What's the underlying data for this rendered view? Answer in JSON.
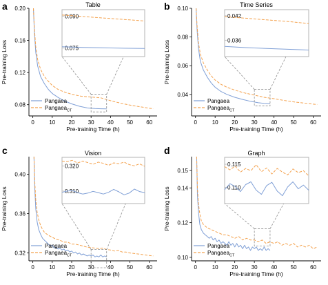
{
  "figure": {
    "panels": [
      "a",
      "b",
      "c",
      "d"
    ]
  },
  "colors": {
    "pangaea": "#7f9fd6",
    "pangaea_ct": "#f4a24e",
    "axis": "#000000",
    "guide": "#8c8c8c",
    "inset_frame": "#b3b3b3"
  },
  "chart_data": [
    {
      "panel": "a",
      "type": "line",
      "title": "Table",
      "xlabel": "Pre-training Time (h)",
      "ylabel": "Pre-training Loss",
      "xlim": [
        -2,
        64
      ],
      "ylim": [
        0.066,
        0.2
      ],
      "xticks": [
        0,
        10,
        20,
        30,
        40,
        50,
        60
      ],
      "yticks": [
        0.08,
        0.12,
        0.16,
        0.2
      ],
      "ytick_labels": [
        "0.08",
        "0.12",
        "0.16",
        "0.20"
      ],
      "legend": {
        "position": "bottom-left",
        "entries": [
          "Pangaea",
          "Pangaea",
          "CT"
        ]
      },
      "series": [
        {
          "name": "Pangaea",
          "style": "solid",
          "x": [
            0.3,
            0.8,
            1.5,
            2.5,
            4,
            6,
            8,
            10,
            13,
            16,
            20,
            24,
            28,
            32,
            35,
            38
          ],
          "y": [
            0.2,
            0.17,
            0.145,
            0.128,
            0.115,
            0.106,
            0.099,
            0.094,
            0.089,
            0.085,
            0.081,
            0.078,
            0.076,
            0.0752,
            0.0749,
            0.0748
          ]
        },
        {
          "name": "Pangaea CT",
          "style": "dashed",
          "x": [
            0.3,
            0.8,
            1.5,
            2.5,
            4,
            6,
            8,
            10,
            13,
            16,
            20,
            25,
            30,
            35,
            40,
            45,
            50,
            55,
            60,
            62
          ],
          "y": [
            0.2,
            0.175,
            0.152,
            0.136,
            0.124,
            0.115,
            0.109,
            0.104,
            0.099,
            0.096,
            0.093,
            0.0905,
            0.0895,
            0.0885,
            0.085,
            0.082,
            0.0795,
            0.0775,
            0.0755,
            0.075
          ]
        }
      ],
      "zoom": {
        "xlim": [
          30,
          38
        ],
        "ylim": [
          0.071,
          0.093
        ],
        "yticks": [
          0.075,
          0.09
        ],
        "ytick_labels": [
          "0.075",
          "0.090"
        ],
        "series": [
          {
            "name": "Pangaea",
            "x": [
              30,
              32,
              34,
              36,
              38
            ],
            "y": [
              0.0756,
              0.0753,
              0.0751,
              0.0749,
              0.0748
            ]
          },
          {
            "name": "Pangaea CT",
            "x": [
              30,
              32,
              34,
              36,
              38
            ],
            "y": [
              0.0905,
              0.0898,
              0.0891,
              0.0884,
              0.0877
            ]
          }
        ]
      }
    },
    {
      "panel": "b",
      "type": "line",
      "title": "Time Series",
      "xlabel": "Pre-training Time (h)",
      "ylabel": "Pre-training Loss",
      "xlim": [
        -2,
        64
      ],
      "ylim": [
        0.025,
        0.1
      ],
      "xticks": [
        0,
        10,
        20,
        30,
        40,
        50,
        60
      ],
      "yticks": [
        0.04,
        0.06,
        0.08,
        0.1
      ],
      "ytick_labels": [
        "0.04",
        "0.06",
        "0.08",
        "0.10"
      ],
      "legend": {
        "position": "bottom-left",
        "entries": [
          "Pangaea",
          "Pangaea",
          "CT"
        ]
      },
      "series": [
        {
          "name": "Pangaea",
          "style": "solid",
          "x": [
            0.3,
            0.8,
            1.5,
            2.5,
            4,
            6,
            8,
            10,
            13,
            16,
            20,
            24,
            28,
            32,
            35,
            38
          ],
          "y": [
            0.1,
            0.085,
            0.072,
            0.063,
            0.057,
            0.052,
            0.048,
            0.045,
            0.042,
            0.04,
            0.038,
            0.0365,
            0.0352,
            0.0342,
            0.0338,
            0.0335
          ]
        },
        {
          "name": "Pangaea CT",
          "style": "dashed",
          "x": [
            0.3,
            0.8,
            1.5,
            2.5,
            4,
            6,
            8,
            10,
            13,
            16,
            20,
            25,
            30,
            35,
            40,
            45,
            50,
            55,
            60,
            62
          ],
          "y": [
            0.1,
            0.088,
            0.076,
            0.068,
            0.062,
            0.057,
            0.053,
            0.05,
            0.047,
            0.045,
            0.043,
            0.041,
            0.0395,
            0.038,
            0.037,
            0.0358,
            0.0348,
            0.034,
            0.0332,
            0.033
          ]
        }
      ],
      "zoom": {
        "xlim": [
          30,
          38
        ],
        "ylim": [
          0.032,
          0.0435
        ],
        "yticks": [
          0.036,
          0.042
        ],
        "ytick_labels": [
          "0.036",
          "0.042"
        ],
        "series": [
          {
            "name": "Pangaea",
            "x": [
              30,
              32,
              34,
              36,
              38
            ],
            "y": [
              0.0345,
              0.0342,
              0.034,
              0.0338,
              0.0336
            ]
          },
          {
            "name": "Pangaea CT",
            "x": [
              30,
              32,
              34,
              36,
              38
            ],
            "y": [
              0.0418,
              0.0414,
              0.041,
              0.0406,
              0.0401
            ]
          }
        ]
      }
    },
    {
      "panel": "c",
      "type": "line",
      "title": "Vision",
      "xlabel": "Pre-training Time (h)",
      "ylabel": "Pre-training Loss",
      "xlim": [
        -2,
        64
      ],
      "ylim": [
        0.312,
        0.418
      ],
      "xticks": [
        0,
        10,
        20,
        30,
        40,
        50,
        60
      ],
      "yticks": [
        0.32,
        0.36,
        0.4
      ],
      "ytick_labels": [
        "0.32",
        "0.36",
        "0.40"
      ],
      "legend": {
        "position": "bottom-left",
        "entries": [
          "Pangaea",
          "Pangaea",
          "CT"
        ]
      },
      "series": [
        {
          "name": "Pangaea",
          "style": "solid",
          "x": [
            0.6,
            1,
            1.5,
            2.2,
            3,
            4,
            5,
            6,
            7,
            8,
            9,
            10,
            11,
            12,
            13,
            14,
            15,
            16,
            17,
            18,
            19,
            20,
            21,
            22,
            23,
            24,
            25,
            26,
            27,
            28,
            29,
            30,
            31,
            32,
            33,
            34,
            35,
            36,
            37,
            38
          ],
          "y": [
            0.418,
            0.385,
            0.365,
            0.352,
            0.344,
            0.339,
            0.335,
            0.333,
            0.331,
            0.329,
            0.327,
            0.328,
            0.325,
            0.326,
            0.324,
            0.325,
            0.323,
            0.324,
            0.322,
            0.323,
            0.321,
            0.322,
            0.32,
            0.321,
            0.319,
            0.32,
            0.318,
            0.319,
            0.318,
            0.317,
            0.318,
            0.317,
            0.318,
            0.316,
            0.317,
            0.316,
            0.318,
            0.316,
            0.317,
            0.316
          ]
        },
        {
          "name": "Pangaea CT",
          "style": "dashed",
          "x": [
            0.6,
            1,
            1.5,
            2.2,
            3,
            4,
            5,
            6,
            8,
            10,
            12,
            14,
            16,
            18,
            20,
            22,
            24,
            26,
            28,
            30,
            32,
            34,
            36,
            38,
            40,
            42,
            44,
            46,
            48,
            50,
            52,
            54,
            56,
            58,
            60,
            62
          ],
          "y": [
            0.418,
            0.392,
            0.374,
            0.362,
            0.354,
            0.348,
            0.344,
            0.341,
            0.338,
            0.336,
            0.334,
            0.333,
            0.331,
            0.331,
            0.329,
            0.329,
            0.328,
            0.327,
            0.326,
            0.3255,
            0.325,
            0.3245,
            0.325,
            0.3235,
            0.323,
            0.322,
            0.3225,
            0.321,
            0.321,
            0.32,
            0.3195,
            0.319,
            0.3185,
            0.318,
            0.3175,
            0.317
          ]
        }
      ],
      "zoom": {
        "xlim": [
          30,
          38
        ],
        "ylim": [
          0.305,
          0.3235
        ],
        "yticks": [
          0.31,
          0.32
        ],
        "ytick_labels": [
          "0.310",
          "0.320"
        ],
        "series": [
          {
            "name": "Pangaea",
            "x": [
              30,
              30.5,
              31,
              31.5,
              32,
              32.5,
              33,
              33.5,
              34,
              34.5,
              35,
              35.5,
              36,
              36.5,
              37,
              37.5,
              38
            ],
            "y": [
              0.3095,
              0.31,
              0.3102,
              0.3094,
              0.3088,
              0.3092,
              0.3099,
              0.3094,
              0.3088,
              0.3095,
              0.3107,
              0.3097,
              0.3085,
              0.3092,
              0.3108,
              0.3098,
              0.3094
            ]
          },
          {
            "name": "Pangaea CT",
            "x": [
              30,
              30.5,
              31,
              31.5,
              32,
              32.5,
              33,
              33.5,
              34,
              34.5,
              35,
              35.5,
              36,
              36.5,
              37,
              37.5,
              38
            ],
            "y": [
              0.322,
              0.3218,
              0.3223,
              0.3212,
              0.322,
              0.3214,
              0.3207,
              0.3216,
              0.3211,
              0.3203,
              0.3213,
              0.3209,
              0.3216,
              0.3206,
              0.3201,
              0.3209,
              0.3199
            ]
          }
        ]
      }
    },
    {
      "panel": "d",
      "type": "line",
      "title": "Graph",
      "xlabel": "Pre-training Time (h)",
      "ylabel": "Pre-training Loss",
      "xlim": [
        -2,
        64
      ],
      "ylim": [
        0.098,
        0.158
      ],
      "xticks": [
        0,
        10,
        20,
        30,
        40,
        50,
        60
      ],
      "yticks": [
        0.1,
        0.12,
        0.14,
        0.15
      ],
      "ytick_labels": [
        "0.10",
        "0.12",
        "0.14",
        "0.15"
      ],
      "legend": {
        "position": "bottom-left",
        "entries": [
          "Pangaea",
          "Pangaea",
          "CT"
        ]
      },
      "series": [
        {
          "name": "Pangaea",
          "style": "solid",
          "x": [
            0.6,
            1,
            1.5,
            2.2,
            3,
            4,
            5,
            6,
            7,
            8,
            9,
            10,
            11,
            12,
            13,
            14,
            15,
            16,
            17,
            18,
            19,
            20,
            21,
            22,
            23,
            24,
            25,
            26,
            27,
            28,
            29,
            30,
            31,
            32,
            33,
            34,
            35,
            36,
            37,
            38
          ],
          "y": [
            0.158,
            0.136,
            0.126,
            0.119,
            0.116,
            0.114,
            0.113,
            0.112,
            0.111,
            0.112,
            0.11,
            0.111,
            0.109,
            0.11,
            0.108,
            0.109,
            0.108,
            0.107,
            0.109,
            0.107,
            0.108,
            0.106,
            0.108,
            0.106,
            0.107,
            0.105,
            0.107,
            0.105,
            0.106,
            0.104,
            0.106,
            0.105,
            0.106,
            0.104,
            0.105,
            0.104,
            0.106,
            0.104,
            0.105,
            0.104
          ]
        },
        {
          "name": "Pangaea CT",
          "style": "dashed",
          "x": [
            0.6,
            1,
            1.5,
            2.2,
            3,
            4,
            5,
            6,
            8,
            10,
            12,
            14,
            16,
            18,
            20,
            22,
            24,
            26,
            28,
            30,
            32,
            34,
            36,
            38,
            40,
            42,
            44,
            46,
            48,
            50,
            52,
            54,
            56,
            58,
            60,
            62
          ],
          "y": [
            0.158,
            0.14,
            0.131,
            0.125,
            0.121,
            0.119,
            0.118,
            0.117,
            0.116,
            0.115,
            0.114,
            0.113,
            0.113,
            0.112,
            0.111,
            0.112,
            0.11,
            0.111,
            0.11,
            0.11,
            0.109,
            0.11,
            0.108,
            0.109,
            0.108,
            0.109,
            0.107,
            0.108,
            0.107,
            0.108,
            0.106,
            0.107,
            0.106,
            0.107,
            0.105,
            0.106
          ]
        }
      ],
      "zoom": {
        "xlim": [
          30,
          38
        ],
        "ylim": [
          0.1065,
          0.1165
        ],
        "yticks": [
          0.11,
          0.115
        ],
        "ytick_labels": [
          "0.110",
          "0.115"
        ],
        "series": [
          {
            "name": "Pangaea",
            "x": [
              30,
              30.5,
              31,
              31.5,
              32,
              32.5,
              33,
              33.5,
              34,
              34.5,
              35,
              35.5,
              36,
              36.5,
              37,
              37.5,
              38
            ],
            "y": [
              0.1095,
              0.1108,
              0.1102,
              0.1091,
              0.1106,
              0.1112,
              0.1094,
              0.1085,
              0.1104,
              0.1111,
              0.1092,
              0.1082,
              0.1101,
              0.1112,
              0.1097,
              0.1105,
              0.1094
            ]
          },
          {
            "name": "Pangaea CT",
            "x": [
              30,
              30.5,
              31,
              31.5,
              32,
              32.5,
              33,
              33.5,
              34,
              34.5,
              35,
              35.5,
              36,
              36.5,
              37,
              37.5,
              38
            ],
            "y": [
              0.1145,
              0.1138,
              0.1146,
              0.1133,
              0.1141,
              0.1136,
              0.1149,
              0.1134,
              0.1142,
              0.1129,
              0.1141,
              0.1133,
              0.1127,
              0.114,
              0.1132,
              0.1136,
              0.1125
            ]
          }
        ]
      }
    }
  ]
}
